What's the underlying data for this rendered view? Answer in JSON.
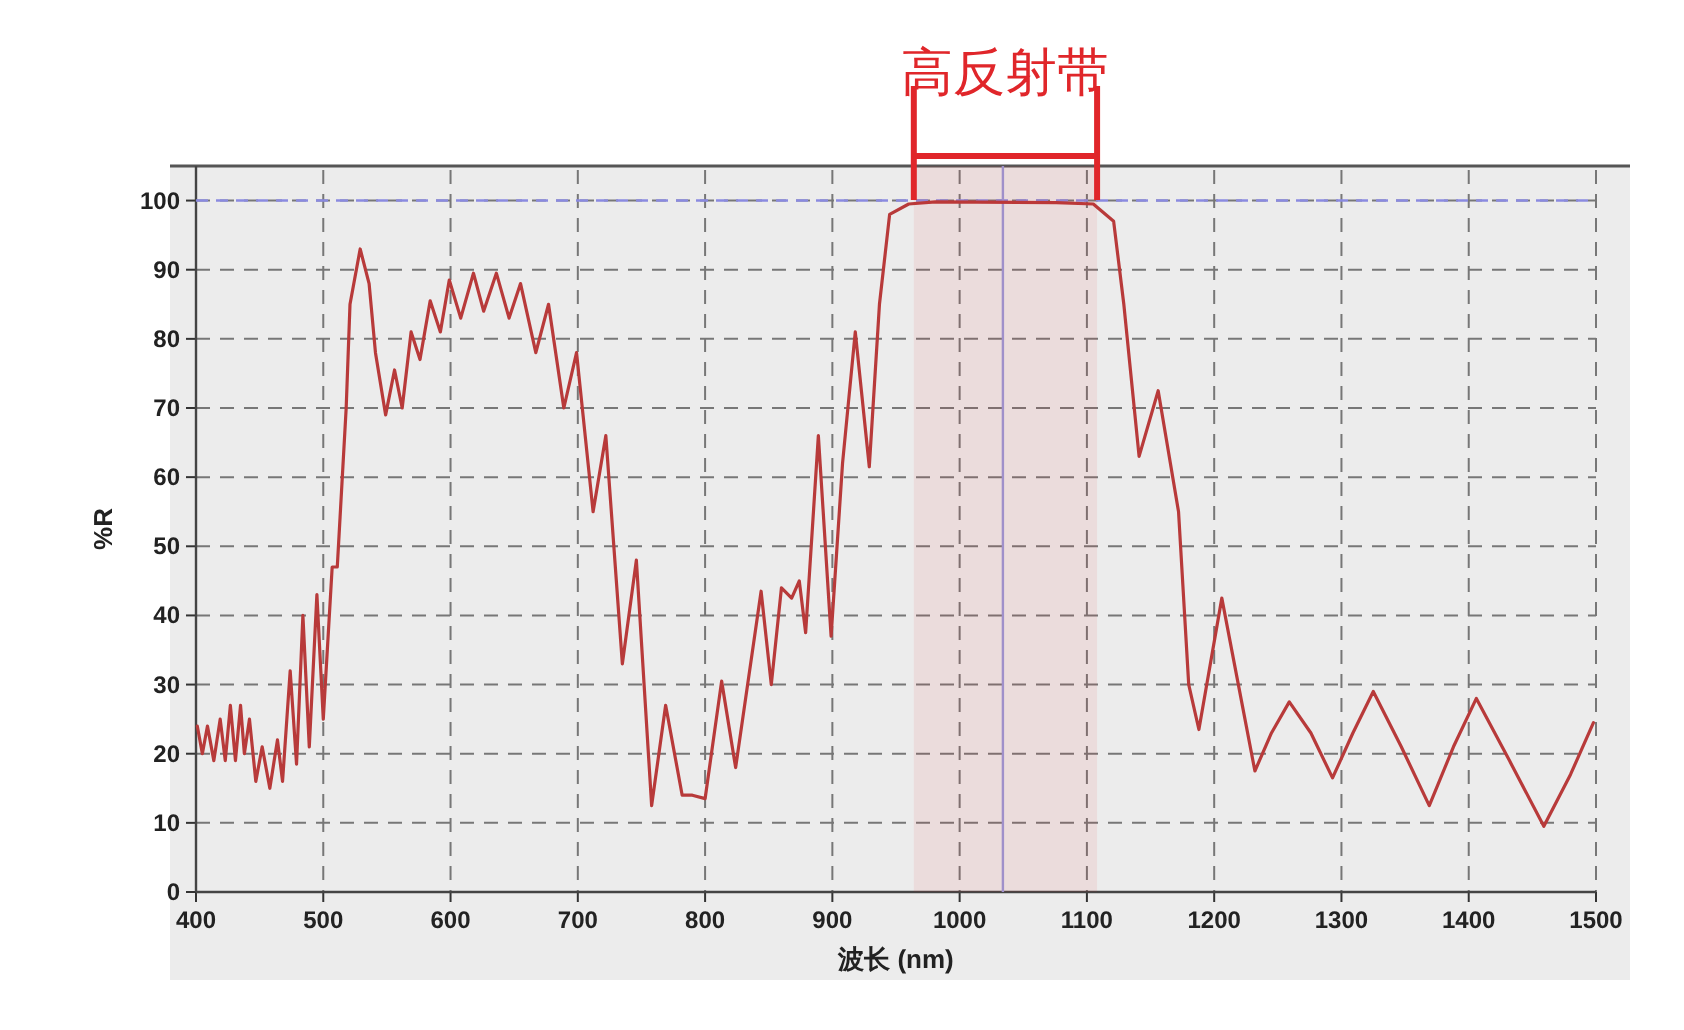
{
  "chart_data": {
    "type": "line",
    "xlabel": "波长 (nm)",
    "ylabel": "%R",
    "xlim": [
      400,
      1500
    ],
    "xticks": [
      400,
      500,
      600,
      700,
      800,
      900,
      1000,
      1100,
      1200,
      1300,
      1400,
      1500
    ],
    "ylim": [
      0,
      105
    ],
    "yticks": [
      0,
      10,
      20,
      30,
      40,
      50,
      60,
      70,
      80,
      90,
      100
    ],
    "grid": true,
    "line_style": "solid",
    "bands": [
      {
        "axis": "x",
        "from": 964,
        "to": 1108,
        "label": "高反射带",
        "color": "#e0262a"
      }
    ],
    "ref_lines": [
      {
        "axis": "y",
        "value": 100,
        "color": "#8a8ae0",
        "line_style": "dashed"
      },
      {
        "axis": "x",
        "value": 1034,
        "color": "#9a9ad8",
        "line_style": "solid"
      }
    ],
    "series": [
      {
        "color": "#b83a3a",
        "x": [
          401,
          405,
          409,
          414,
          419,
          423,
          427,
          431,
          435,
          438,
          442,
          447,
          452,
          458,
          464,
          468,
          474,
          479,
          484,
          489,
          495,
          500,
          507,
          511,
          518,
          521,
          529,
          536,
          541,
          549,
          556,
          562,
          569,
          576,
          584,
          592,
          599,
          608,
          618,
          626,
          636,
          646,
          655,
          667,
          677,
          689,
          699,
          712,
          722,
          735,
          746,
          758,
          769,
          782,
          790,
          800,
          813,
          824,
          844,
          852,
          860,
          868,
          874,
          879,
          889,
          899,
          908,
          918,
          929,
          937,
          945,
          960,
          981,
          1076,
          1105,
          1121,
          1129,
          1141,
          1156,
          1172,
          1180,
          1188,
          1206,
          1219,
          1232,
          1245,
          1259,
          1276,
          1293,
          1309,
          1325,
          1347,
          1369,
          1388,
          1406,
          1432,
          1459,
          1480,
          1498
        ],
        "values": [
          24,
          20,
          24,
          19,
          25,
          19,
          27,
          19,
          27,
          20,
          25,
          16,
          21,
          15,
          22,
          16,
          32,
          18.5,
          40,
          21,
          43,
          25,
          47,
          47,
          70,
          85,
          93,
          88,
          78,
          69,
          75.5,
          70,
          81,
          77,
          85.5,
          81,
          88.5,
          83,
          89.5,
          84,
          89.5,
          83,
          88,
          78,
          85,
          70,
          78,
          55,
          66,
          33,
          48,
          12.5,
          27,
          14,
          14,
          13.5,
          30.5,
          18,
          43.5,
          30,
          44,
          42.5,
          45,
          37.5,
          66,
          37,
          62,
          81,
          61.5,
          85,
          98,
          99.5,
          99.8,
          99.7,
          99.5,
          97,
          85,
          63,
          72.5,
          55,
          30,
          23.5,
          42.5,
          30,
          17.5,
          23,
          27.5,
          23,
          16.5,
          23,
          29,
          21,
          12.5,
          21,
          28,
          19,
          9.5,
          17,
          24.5
        ]
      }
    ]
  }
}
